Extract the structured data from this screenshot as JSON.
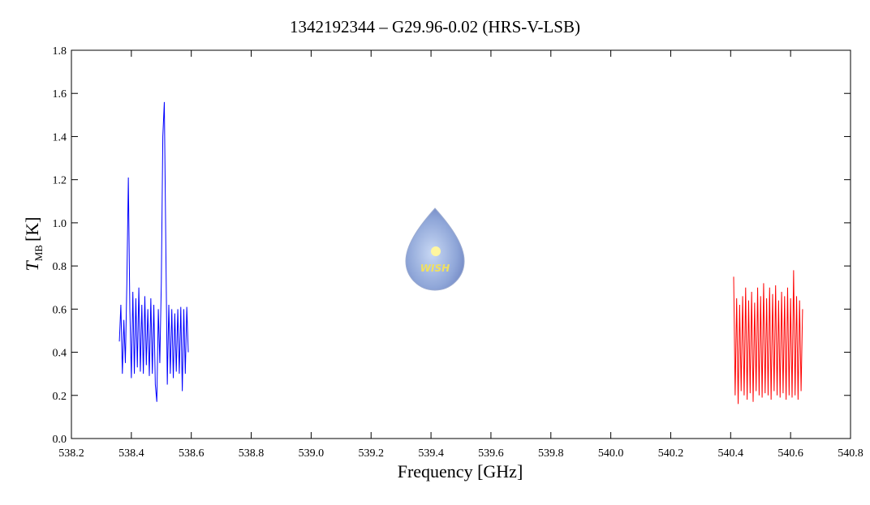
{
  "chart_data": {
    "type": "line",
    "title": "1342192344 – G29.96-0.02 (HRS-V-LSB)",
    "xlabel": "Frequency [GHz]",
    "ylabel": {
      "symbol": "T",
      "subscript": "MB",
      "unit": "[K]"
    },
    "logo_text": "WISH",
    "xlim": [
      538.2,
      540.8
    ],
    "xticks": [
      538.2,
      538.4,
      538.6,
      538.8,
      {
        "value": 539,
        "label": "539.0"
      },
      539.2,
      539.4,
      539.6,
      539.8,
      {
        "value": 540,
        "label": "540.0"
      },
      540.2,
      540.4,
      540.6,
      540.8
    ],
    "ylim": [
      0,
      1.8
    ],
    "yticks": [
      {
        "value": 0,
        "label": "0.0"
      },
      0.2,
      0.4,
      0.6,
      0.8,
      {
        "value": 1,
        "label": "1.0"
      },
      1.2,
      1.4,
      1.6,
      1.8
    ],
    "series": [
      {
        "color": "#0000ff",
        "x": [
          538.36,
          538.365,
          538.37,
          538.375,
          538.38,
          538.385,
          538.39,
          538.395,
          538.4,
          538.405,
          538.41,
          538.415,
          538.42,
          538.425,
          538.43,
          538.435,
          538.44,
          538.445,
          538.45,
          538.455,
          538.46,
          538.465,
          538.47,
          538.475,
          538.48,
          538.485,
          538.49,
          538.495,
          538.5,
          538.505,
          538.51,
          538.515,
          538.52,
          538.525,
          538.53,
          538.535,
          538.54,
          538.545,
          538.55,
          538.555,
          538.56,
          538.565,
          538.57,
          538.575,
          538.58,
          538.585,
          538.59
        ],
        "values": [
          0.45,
          0.62,
          0.3,
          0.55,
          0.35,
          0.72,
          1.21,
          0.6,
          0.28,
          0.68,
          0.3,
          0.65,
          0.33,
          0.7,
          0.31,
          0.62,
          0.3,
          0.66,
          0.34,
          0.6,
          0.29,
          0.65,
          0.3,
          0.62,
          0.25,
          0.17,
          0.6,
          0.35,
          0.72,
          1.4,
          1.56,
          0.9,
          0.25,
          0.62,
          0.3,
          0.6,
          0.28,
          0.58,
          0.31,
          0.6,
          0.3,
          0.61,
          0.22,
          0.6,
          0.3,
          0.61,
          0.4
        ]
      },
      {
        "color": "#ff0000",
        "x": [
          540.41,
          540.415,
          540.42,
          540.425,
          540.43,
          540.435,
          540.44,
          540.445,
          540.45,
          540.455,
          540.46,
          540.465,
          540.47,
          540.475,
          540.48,
          540.485,
          540.49,
          540.495,
          540.5,
          540.505,
          540.51,
          540.515,
          540.52,
          540.525,
          540.53,
          540.535,
          540.54,
          540.545,
          540.55,
          540.555,
          540.56,
          540.565,
          540.57,
          540.575,
          540.58,
          540.585,
          540.59,
          540.595,
          540.6,
          540.605,
          540.61,
          540.615,
          540.62,
          540.625,
          540.63,
          540.635,
          540.64
        ],
        "values": [
          0.75,
          0.2,
          0.65,
          0.16,
          0.62,
          0.22,
          0.66,
          0.2,
          0.7,
          0.18,
          0.64,
          0.21,
          0.68,
          0.17,
          0.63,
          0.22,
          0.7,
          0.2,
          0.66,
          0.19,
          0.72,
          0.21,
          0.65,
          0.2,
          0.7,
          0.18,
          0.67,
          0.22,
          0.71,
          0.2,
          0.64,
          0.19,
          0.68,
          0.21,
          0.66,
          0.18,
          0.7,
          0.2,
          0.65,
          0.19,
          0.78,
          0.2,
          0.66,
          0.18,
          0.64,
          0.22,
          0.6
        ]
      }
    ]
  }
}
